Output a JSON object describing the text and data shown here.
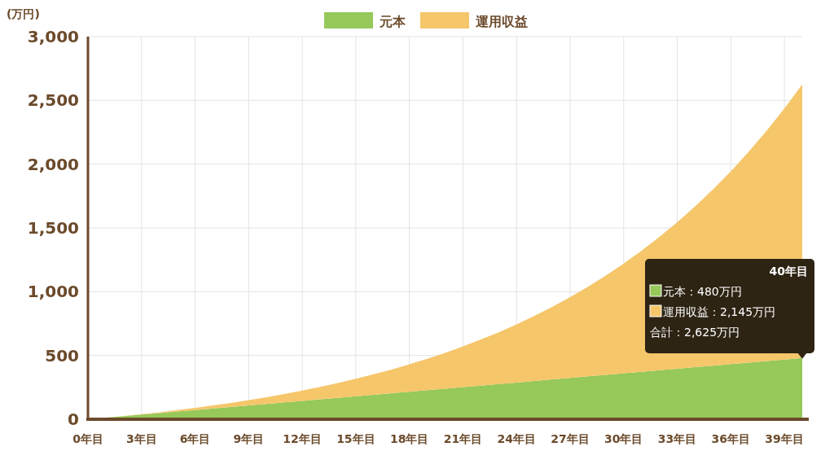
{
  "chart_data": {
    "type": "area",
    "stacked": true,
    "ylabel": "(万円)",
    "categories": [
      "0年目",
      null,
      null,
      "3年目",
      null,
      null,
      "6年目",
      null,
      null,
      "9年目",
      null,
      null,
      "12年目",
      null,
      null,
      "15年目",
      null,
      null,
      "18年目",
      null,
      null,
      "21年目",
      null,
      null,
      "24年目",
      null,
      null,
      "27年目",
      null,
      null,
      "30年目",
      null,
      null,
      "33年目",
      null,
      null,
      "36年目",
      null,
      null,
      "39年目",
      null
    ],
    "series": [
      {
        "name": "元本",
        "color": "#96c85a",
        "values": [
          0,
          12,
          24,
          36,
          48,
          60,
          72,
          84,
          96,
          108,
          120,
          132,
          144,
          156,
          168,
          180,
          192,
          204,
          216,
          228,
          240,
          252,
          264,
          276,
          288,
          300,
          312,
          324,
          336,
          348,
          360,
          372,
          384,
          396,
          408,
          420,
          432,
          444,
          456,
          468,
          480
        ]
      },
      {
        "name": "運用収益",
        "color": "#f5c66a",
        "values": [
          0,
          0,
          2,
          4,
          7,
          12,
          17,
          24,
          32,
          42,
          53,
          66,
          81,
          97,
          116,
          137,
          160,
          186,
          215,
          246,
          281,
          319,
          361,
          406,
          456,
          510,
          569,
          633,
          703,
          778,
          860,
          949,
          1045,
          1149,
          1261,
          1382,
          1512,
          1653,
          1805,
          1969,
          2145
        ]
      }
    ],
    "ylim": [
      0,
      3000
    ],
    "yticks": [
      0,
      500,
      {
        "value": 1000,
        "label": "1,000"
      },
      {
        "value": 1500,
        "label": "1,500"
      },
      {
        "value": 2000,
        "label": "2,000"
      },
      {
        "value": 2500,
        "label": "2,500"
      },
      {
        "value": 3000,
        "label": "3,000"
      }
    ],
    "grid": true,
    "legend": "top",
    "annotations": [
      "40年目",
      "元本：480万円",
      "運用収益：2,145万円",
      "合計：2,625万円"
    ]
  }
}
